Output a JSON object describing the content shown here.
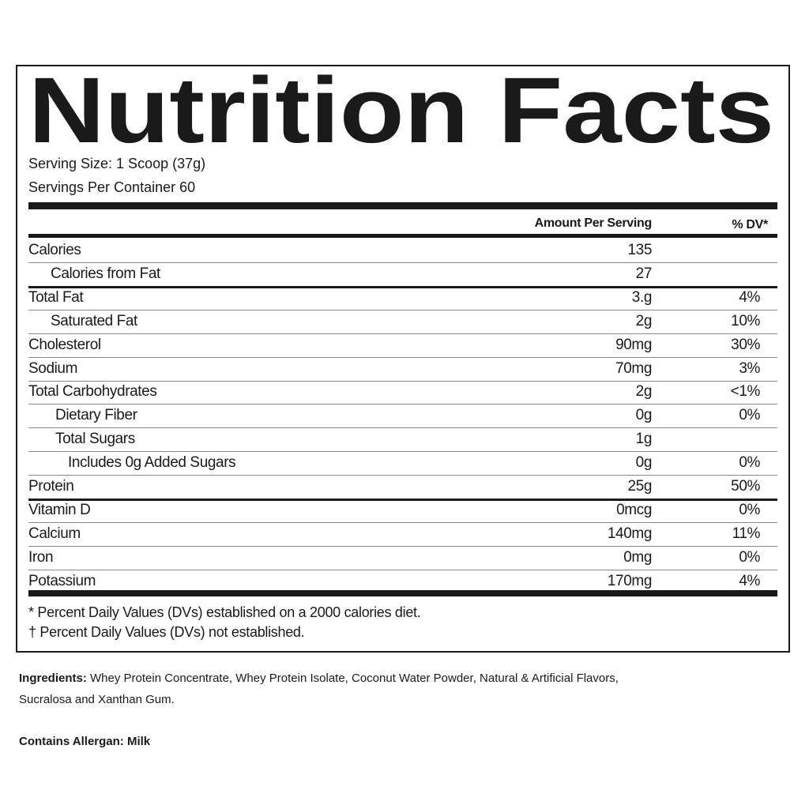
{
  "label": {
    "title": "Nutrition Facts",
    "serving_size": "Serving Size: 1 Scoop (37g)",
    "servings_per_container": "Servings Per Container 60",
    "amount_header": "Amount Per Serving",
    "dv_header": "% DV*",
    "rows": [
      {
        "name": "Calories",
        "amount": "135"
      },
      {
        "name": "Calories from Fat",
        "amount": "27"
      },
      {
        "name": "Total Fat",
        "amount": "3.g",
        "dv": "4%"
      },
      {
        "name": "Saturated Fat",
        "amount": "2g",
        "dv": "10%"
      },
      {
        "name": "Cholesterol",
        "amount": "90mg",
        "dv": "30%"
      },
      {
        "name": "Sodium",
        "amount": "70mg",
        "dv": "3%"
      },
      {
        "name": "Total Carbohydrates",
        "amount": "2g",
        "dv": "<1%"
      },
      {
        "name": "Dietary Fiber",
        "amount": "0g",
        "dv": "0%"
      },
      {
        "name": "Total Sugars",
        "amount": "1g"
      },
      {
        "name": "Includes 0g Added Sugars",
        "amount": "0g",
        "dv": "0%"
      },
      {
        "name": "Protein",
        "amount": "25g",
        "dv": "50%"
      },
      {
        "name": "Vitamin D",
        "amount": "0mcg",
        "dv": "0%"
      },
      {
        "name": "Calcium",
        "amount": "140mg",
        "dv": "11%"
      },
      {
        "name": "Iron",
        "amount": "0mg",
        "dv": "0%"
      },
      {
        "name": "Potassium",
        "amount": "170mg",
        "dv": "4%"
      }
    ],
    "footnotes": [
      "* Percent Daily Values (DVs) established on a 2000 calories diet.",
      "† Percent Daily Values (DVs) not established."
    ]
  },
  "ingredients": {
    "label": "Ingredients:",
    "line1": "Whey Protein Concentrate, Whey Protein Isolate, Coconut Water Powder, Natural & Artificial Flavors,",
    "line2": "Sucralosa and Xanthan Gum."
  },
  "allergen": {
    "label": "Contains Allergan:",
    "text": "Milk"
  }
}
